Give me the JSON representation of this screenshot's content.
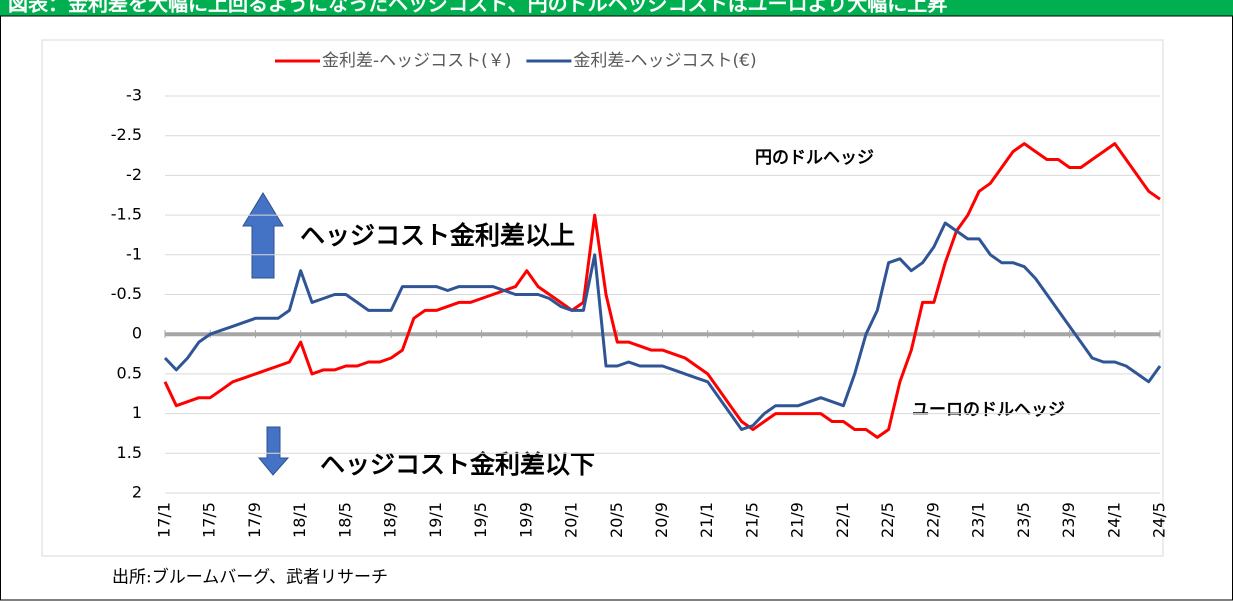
{
  "chart_data": {
    "type": "line",
    "title": "図表：金利差を大幅に上回るようになったヘッジコスト、円のドルヘッジコストはユーロより大幅に上昇",
    "source": "出所:ブルームバーグ、武者リサーチ",
    "annotations": [
      "円のドルヘッジ",
      "ユーロのドルヘッジ",
      "ヘッジコスト金利差以上",
      "ヘッジコスト金利差以下"
    ],
    "categories": [
      "17/1",
      null,
      null,
      null,
      "17/5",
      null,
      null,
      null,
      "17/9",
      null,
      null,
      null,
      "18/1",
      null,
      null,
      null,
      "18/5",
      null,
      null,
      null,
      "18/9",
      null,
      null,
      null,
      "19/1",
      null,
      null,
      null,
      "19/5",
      null,
      null,
      null,
      "19/9",
      null,
      null,
      null,
      "20/1",
      null,
      null,
      null,
      "20/5",
      null,
      null,
      null,
      "20/9",
      null,
      null,
      null,
      "21/1",
      null,
      null,
      null,
      "21/5",
      null,
      null,
      null,
      "21/9",
      null,
      null,
      null,
      "22/1",
      null,
      null,
      null,
      "22/5",
      null,
      null,
      null,
      "22/9",
      null,
      null,
      null,
      "23/1",
      null,
      null,
      null,
      "23/5",
      null,
      null,
      null,
      "23/9",
      null,
      null,
      null,
      "24/1",
      null,
      null,
      null,
      "24/5"
    ],
    "series": [
      {
        "name": "金利差-ヘッジコスト(￥)",
        "color": "#ff0000",
        "values": [
          0.6,
          0.9,
          0.85,
          0.8,
          0.8,
          0.7,
          0.6,
          0.55,
          0.5,
          0.45,
          0.4,
          0.35,
          0.1,
          0.5,
          0.45,
          0.45,
          0.4,
          0.4,
          0.35,
          0.35,
          0.3,
          0.2,
          -0.2,
          -0.3,
          -0.3,
          -0.35,
          -0.4,
          -0.4,
          -0.45,
          -0.5,
          -0.55,
          -0.6,
          -0.8,
          -0.6,
          -0.5,
          -0.4,
          -0.3,
          -0.4,
          -1.5,
          -0.5,
          0.1,
          0.1,
          0.15,
          0.2,
          0.2,
          0.25,
          0.3,
          0.4,
          0.5,
          0.7,
          0.9,
          1.1,
          1.2,
          1.1,
          1.0,
          1.0,
          1.0,
          1.0,
          1.0,
          1.1,
          1.1,
          1.2,
          1.2,
          1.3,
          1.2,
          0.6,
          0.2,
          -0.4,
          -0.4,
          -0.9,
          -1.3,
          -1.5,
          -1.8,
          -1.9,
          -2.1,
          -2.3,
          -2.4,
          -2.3,
          -2.2,
          -2.2,
          -2.1,
          -2.1,
          -2.2,
          -2.3,
          -2.4,
          -2.2,
          -2.0,
          -1.8,
          -1.7
        ]
      },
      {
        "name": "金利差-ヘッジコスト(€)",
        "color": "#2f5597",
        "values": [
          0.3,
          0.45,
          0.3,
          0.1,
          0.0,
          -0.05,
          -0.1,
          -0.15,
          -0.2,
          -0.2,
          -0.2,
          -0.3,
          -0.8,
          -0.4,
          -0.45,
          -0.5,
          -0.5,
          -0.4,
          -0.3,
          -0.3,
          -0.3,
          -0.6,
          -0.6,
          -0.6,
          -0.6,
          -0.55,
          -0.6,
          -0.6,
          -0.6,
          -0.6,
          -0.55,
          -0.5,
          -0.5,
          -0.5,
          -0.45,
          -0.35,
          -0.3,
          -0.3,
          -1.0,
          0.4,
          0.4,
          0.35,
          0.4,
          0.4,
          0.4,
          0.45,
          0.5,
          0.55,
          0.6,
          0.8,
          1.0,
          1.2,
          1.15,
          1.0,
          0.9,
          0.9,
          0.9,
          0.85,
          0.8,
          0.85,
          0.9,
          0.5,
          0.0,
          -0.3,
          -0.9,
          -0.95,
          -0.8,
          -0.9,
          -1.1,
          -1.4,
          -1.3,
          -1.2,
          -1.2,
          -1.0,
          -0.9,
          -0.9,
          -0.85,
          -0.7,
          -0.5,
          -0.3,
          -0.1,
          0.1,
          0.3,
          0.35,
          0.35,
          0.4,
          0.5,
          0.6,
          0.4
        ]
      }
    ],
    "ylim": [
      2,
      -3
    ],
    "yticks": [
      -3,
      -2.5,
      -2,
      -1.5,
      -1,
      -0.5,
      0,
      0.5,
      1,
      1.5,
      2
    ],
    "grid": true,
    "legend": "top"
  }
}
